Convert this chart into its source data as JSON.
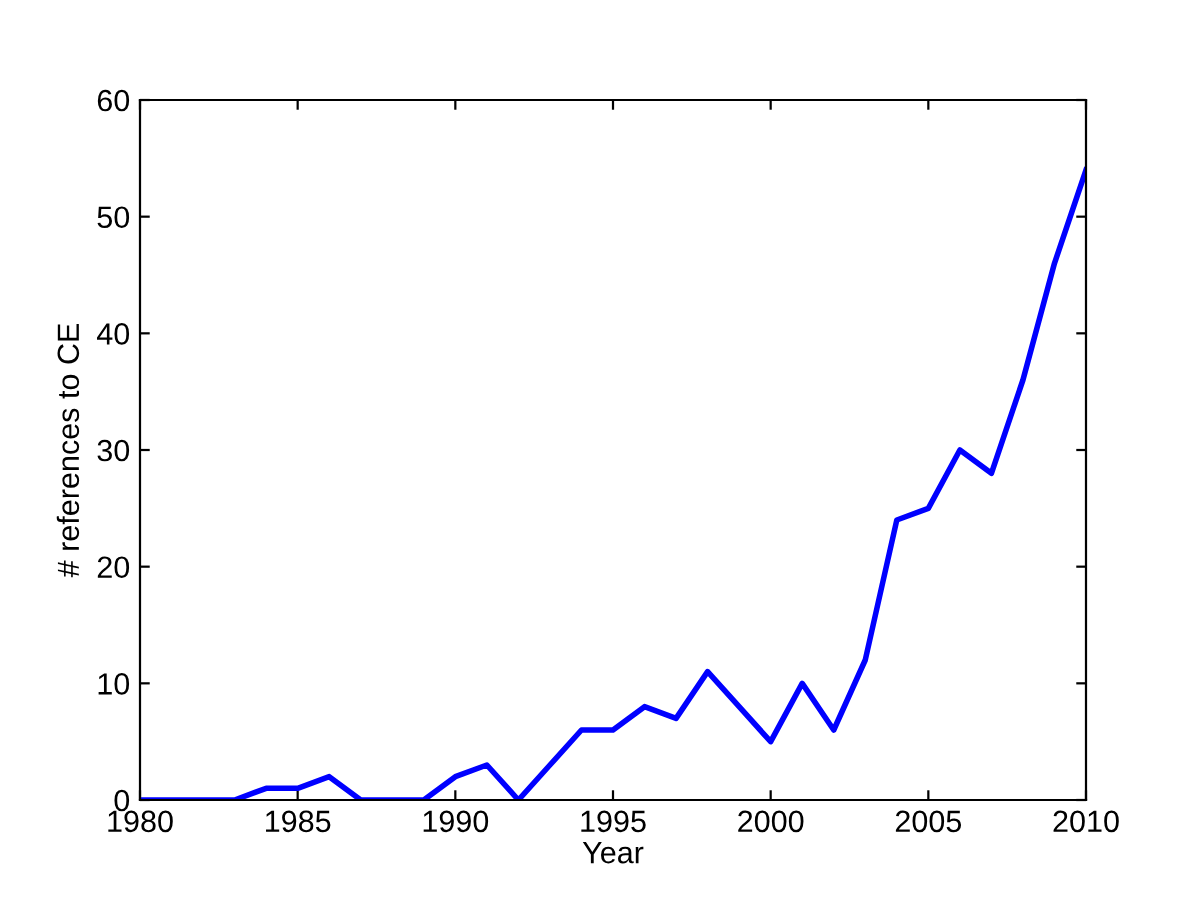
{
  "chart_data": {
    "type": "line",
    "xlabel": "Year",
    "ylabel": "# references to CE",
    "x": [
      1980,
      1981,
      1982,
      1983,
      1984,
      1985,
      1986,
      1987,
      1988,
      1989,
      1990,
      1991,
      1992,
      1993,
      1994,
      1995,
      1996,
      1997,
      1998,
      1999,
      2000,
      2001,
      2002,
      2003,
      2004,
      2005,
      2006,
      2007,
      2008,
      2009,
      2010
    ],
    "series": [
      {
        "color": "#0000ff",
        "values": [
          0,
          0,
          0,
          0,
          1,
          1,
          2,
          0,
          0,
          0,
          2,
          3,
          0,
          3,
          6,
          6,
          8,
          7,
          11,
          8,
          5,
          10,
          6,
          12,
          24,
          25,
          30,
          28,
          36,
          46,
          54
        ]
      }
    ],
    "xlim": [
      1980,
      2010
    ],
    "xticks": [
      1980,
      1985,
      1990,
      1995,
      2000,
      2005,
      2010
    ],
    "ylim": [
      0,
      60
    ],
    "yticks": [
      0,
      10,
      20,
      30,
      40,
      50,
      60
    ],
    "grid": false,
    "legend": false,
    "marker": "none",
    "line_style": "solid"
  }
}
